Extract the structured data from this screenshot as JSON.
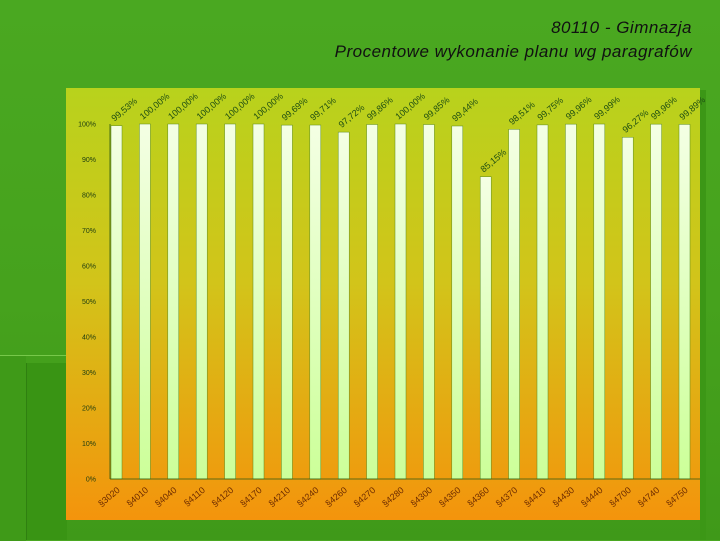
{
  "title_line1": "80110 - Gimnazja",
  "title_line2": "Procentowe wykonanie planu wg paragrafów",
  "colors": {
    "background": "#46a21d",
    "plot_top": "#b8d21c",
    "plot_bottom": "#f4940c",
    "bar_fill_top": "#f4ffe4",
    "bar_fill_bottom": "#ccff99",
    "bar_stroke": "#5a8a1e"
  },
  "chart_data": {
    "type": "bar",
    "title": "Procentowe wykonanie planu wg paragrafów",
    "xlabel": "",
    "ylabel": "",
    "ylim": [
      0,
      100
    ],
    "y_ticks": [
      0,
      10,
      20,
      30,
      40,
      50,
      60,
      70,
      80,
      90,
      100
    ],
    "y_tick_labels": [
      "0%",
      "10%",
      "20%",
      "30%",
      "40%",
      "50%",
      "60%",
      "70%",
      "80%",
      "90%",
      "100%"
    ],
    "grid": false,
    "legend": "none",
    "categories": [
      "§3020",
      "§4010",
      "§4040",
      "§4110",
      "§4120",
      "§4170",
      "§4210",
      "§4240",
      "§4260",
      "§4270",
      "§4280",
      "§4300",
      "§4350",
      "§4360",
      "§4370",
      "§4410",
      "§4430",
      "§4440",
      "§4700",
      "§4740",
      "§4750"
    ],
    "values": [
      99.53,
      100.0,
      100.0,
      100.0,
      100.0,
      100.0,
      99.69,
      99.71,
      97.72,
      99.86,
      100.0,
      99.85,
      99.44,
      85.15,
      98.51,
      99.75,
      99.96,
      99.99,
      96.27,
      99.96,
      99.89
    ],
    "data_labels": [
      "99,53%",
      "100,00%",
      "100,00%",
      "100,00%",
      "100,00%",
      "100,00%",
      "99,69%",
      "99,71%",
      "97,72%",
      "99,86%",
      "100,00%",
      "99,85%",
      "99,44%",
      "85,15%",
      "98,51%",
      "99,75%",
      "99,96%",
      "99,99%",
      "96,27%",
      "99,96%",
      "99,89%"
    ]
  }
}
